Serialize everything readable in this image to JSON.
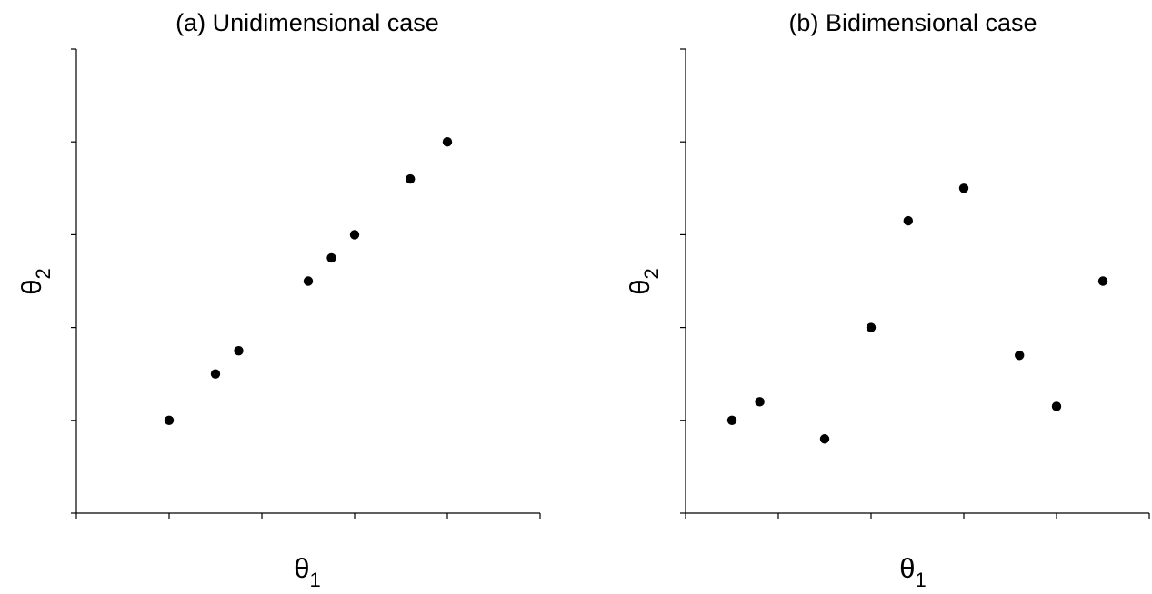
{
  "chart_data": [
    {
      "type": "scatter",
      "title": "(a) Unidimensional case",
      "xlabel": "θ",
      "xlabel_subscript": "1",
      "ylabel": "θ",
      "ylabel_subscript": "2",
      "xlim": [
        0,
        5
      ],
      "ylim": [
        0,
        5
      ],
      "xticks": [
        0,
        1,
        2,
        3,
        4,
        5
      ],
      "yticks": [
        0,
        1,
        2,
        3,
        4,
        5
      ],
      "tick_labels_shown": false,
      "grid": false,
      "marker_color": "#000000",
      "x": [
        1.0,
        1.5,
        1.75,
        2.5,
        2.75,
        3.0,
        3.6,
        4.0
      ],
      "y": [
        1.0,
        1.5,
        1.75,
        2.5,
        2.75,
        3.0,
        3.6,
        4.0
      ]
    },
    {
      "type": "scatter",
      "title": "(b) Bidimensional case",
      "xlabel": "θ",
      "xlabel_subscript": "1",
      "ylabel": "θ",
      "ylabel_subscript": "2",
      "xlim": [
        0,
        5
      ],
      "ylim": [
        0,
        5
      ],
      "xticks": [
        0,
        1,
        2,
        3,
        4,
        5
      ],
      "yticks": [
        0,
        1,
        2,
        3,
        4,
        5
      ],
      "tick_labels_shown": false,
      "grid": false,
      "marker_color": "#000000",
      "x": [
        0.5,
        0.8,
        1.5,
        2.0,
        2.4,
        3.0,
        3.6,
        4.0,
        4.5
      ],
      "y": [
        1.0,
        1.2,
        0.8,
        2.0,
        3.15,
        3.5,
        1.7,
        1.15,
        2.5
      ]
    }
  ]
}
